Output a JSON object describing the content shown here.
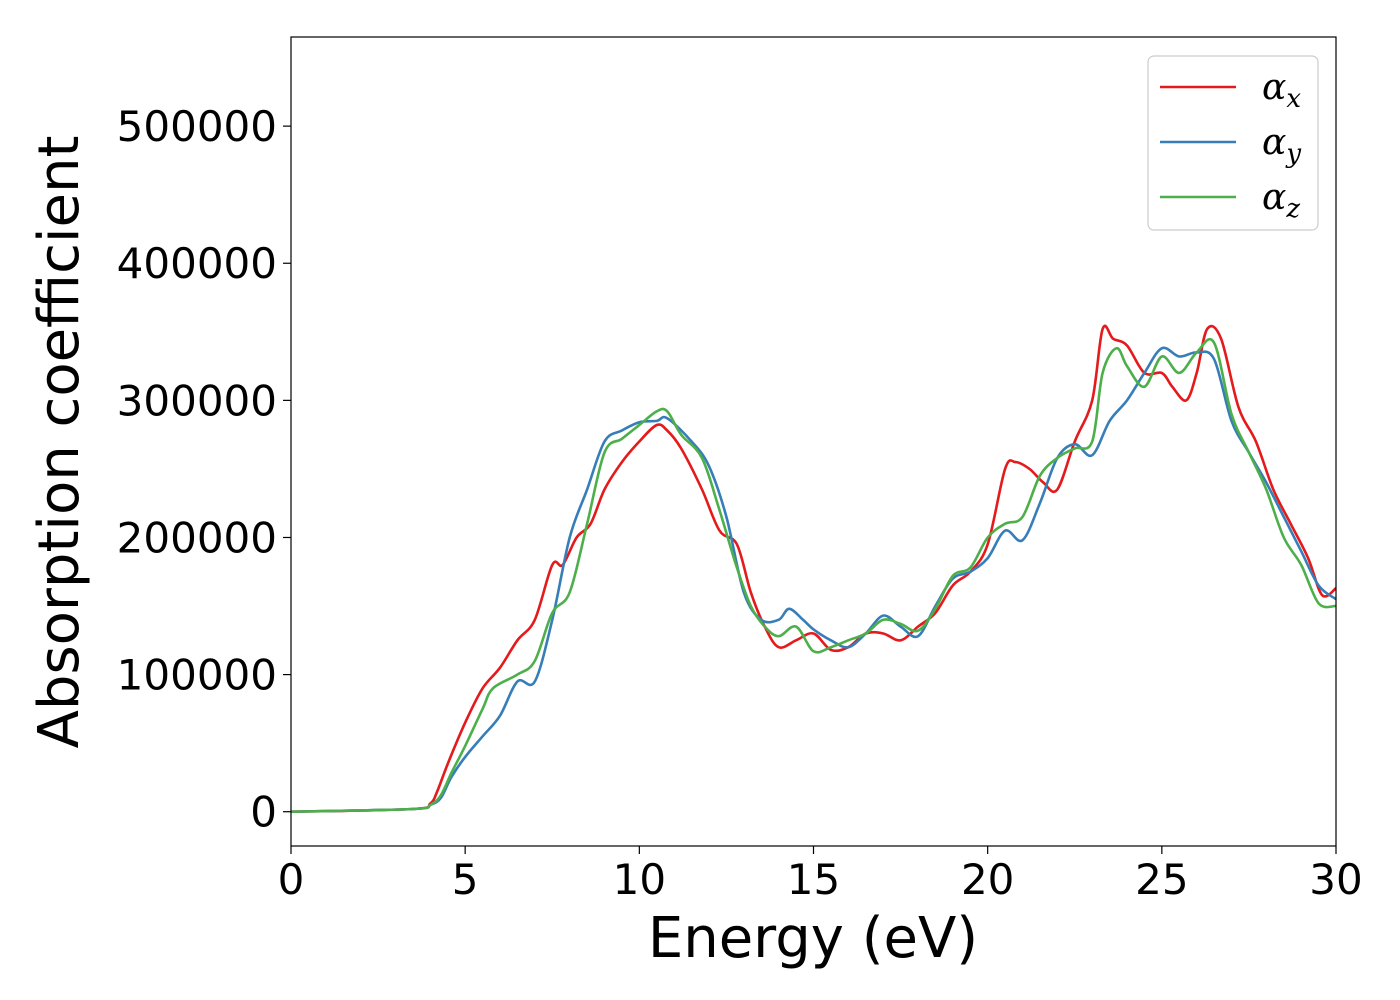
{
  "chart_data": {
    "type": "line",
    "xlabel": "Energy (eV)",
    "ylabel": "Absorption coefficient",
    "xlim": [
      0,
      30
    ],
    "ylim": [
      -25000,
      565000
    ],
    "xticks": [
      0,
      5,
      10,
      15,
      20,
      25,
      30
    ],
    "yticks": [
      0,
      100000,
      200000,
      300000,
      400000,
      500000
    ],
    "x_tick_labels": [
      "0",
      "5",
      "10",
      "15",
      "20",
      "25",
      "30"
    ],
    "y_tick_labels": [
      "0",
      "100000",
      "200000",
      "300000",
      "400000",
      "500000"
    ],
    "grid": false,
    "legend_position": "top-right",
    "series": [
      {
        "name": "α",
        "subscript": "x",
        "color": "#e41a1c",
        "x": [
          0,
          3.5,
          4,
          4.2,
          4.5,
          5,
          5.5,
          6,
          6.5,
          7,
          7.5,
          7.8,
          8.2,
          8.6,
          9,
          9.5,
          10,
          10.5,
          10.8,
          11.2,
          11.8,
          12.3,
          12.8,
          13.2,
          13.6,
          14,
          14.5,
          15,
          15.5,
          16,
          16.5,
          17,
          17.5,
          18,
          18.5,
          19,
          19.5,
          20,
          20.5,
          20.8,
          21.2,
          21.6,
          22,
          22.5,
          23,
          23.3,
          23.6,
          24,
          24.5,
          25,
          25.3,
          25.7,
          26,
          26.3,
          26.7,
          27.2,
          27.7,
          28.2,
          28.7,
          29.2,
          29.6,
          30
        ],
        "y": [
          0,
          2000,
          6000,
          15000,
          35000,
          65000,
          90000,
          105000,
          125000,
          140000,
          180000,
          180000,
          200000,
          210000,
          235000,
          255000,
          270000,
          282000,
          278000,
          265000,
          235000,
          205000,
          195000,
          160000,
          135000,
          120000,
          125000,
          130000,
          118000,
          120000,
          130000,
          130000,
          125000,
          135000,
          145000,
          165000,
          175000,
          195000,
          250000,
          255000,
          250000,
          240000,
          235000,
          270000,
          300000,
          352000,
          345000,
          340000,
          320000,
          320000,
          310000,
          300000,
          320000,
          352000,
          345000,
          295000,
          270000,
          235000,
          210000,
          185000,
          158000,
          163000
        ]
      },
      {
        "name": "α",
        "subscript": "y",
        "color": "#377eb8",
        "x": [
          0,
          3.5,
          4,
          4.3,
          4.6,
          5,
          5.5,
          6,
          6.5,
          7,
          7.5,
          8,
          8.5,
          9,
          9.5,
          10,
          10.5,
          10.8,
          11.5,
          12,
          12.5,
          13,
          13.5,
          14,
          14.3,
          14.7,
          15,
          15.5,
          16,
          16.5,
          17,
          17.5,
          18,
          18.5,
          19,
          19.5,
          20,
          20.5,
          21,
          21.5,
          22,
          22.5,
          23,
          23.5,
          24,
          24.5,
          25,
          25.5,
          26,
          26.5,
          27,
          27.5,
          28,
          28.5,
          29,
          29.5,
          30
        ],
        "y": [
          0,
          2000,
          5000,
          10000,
          25000,
          40000,
          55000,
          70000,
          95000,
          95000,
          140000,
          200000,
          235000,
          270000,
          278000,
          284000,
          285000,
          287000,
          270000,
          252000,
          215000,
          160000,
          140000,
          140000,
          148000,
          140000,
          133000,
          125000,
          120000,
          130000,
          143000,
          135000,
          128000,
          150000,
          170000,
          175000,
          185000,
          205000,
          198000,
          225000,
          258000,
          268000,
          260000,
          285000,
          300000,
          320000,
          338000,
          332000,
          335000,
          330000,
          285000,
          262000,
          240000,
          215000,
          190000,
          165000,
          155000
        ]
      },
      {
        "name": "α",
        "subscript": "z",
        "color": "#4daf4a",
        "x": [
          0,
          3.5,
          4,
          4.3,
          4.6,
          5,
          5.5,
          5.8,
          6.5,
          7,
          7.5,
          8,
          8.5,
          9,
          9.5,
          10,
          10.5,
          10.8,
          11.2,
          11.8,
          12.3,
          12.8,
          13.2,
          13.6,
          14,
          14.5,
          15,
          15.5,
          16,
          16.5,
          17,
          17.5,
          18,
          18.5,
          19,
          19.5,
          20,
          20.5,
          21,
          21.5,
          22,
          22.5,
          23,
          23.3,
          23.7,
          24,
          24.5,
          25,
          25.5,
          26,
          26.5,
          27,
          27.5,
          28,
          28.5,
          29,
          29.5,
          30
        ],
        "y": [
          0,
          2000,
          5000,
          12000,
          28000,
          48000,
          75000,
          90000,
          100000,
          110000,
          145000,
          160000,
          210000,
          262000,
          272000,
          282000,
          292000,
          292000,
          275000,
          258000,
          220000,
          178000,
          150000,
          135000,
          128000,
          135000,
          117000,
          120000,
          125000,
          130000,
          140000,
          137000,
          132000,
          148000,
          172000,
          178000,
          200000,
          210000,
          215000,
          245000,
          258000,
          265000,
          270000,
          320000,
          338000,
          325000,
          310000,
          332000,
          320000,
          335000,
          342000,
          290000,
          262000,
          235000,
          200000,
          180000,
          152000,
          150000
        ]
      }
    ]
  }
}
